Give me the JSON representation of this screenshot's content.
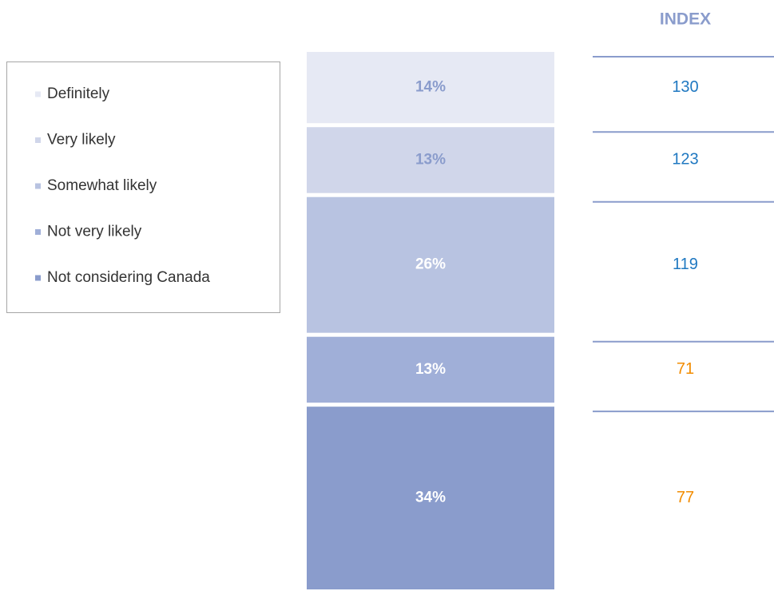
{
  "chart_data": {
    "type": "stacked_bar",
    "series": [
      {
        "name": "Definitely",
        "color": "#e6e9f4",
        "label_color": "#8a9ccc",
        "values": [
          14
        ],
        "value_labels": [
          "14%"
        ]
      },
      {
        "name": "Very likely",
        "color": "#d0d6ea",
        "label_color": "#8a9ccc",
        "values": [
          13
        ],
        "value_labels": [
          "13%"
        ]
      },
      {
        "name": "Somewhat likely",
        "color": "#b8c3e1",
        "label_color": "#ffffff",
        "values": [
          26
        ],
        "value_labels": [
          "26%"
        ]
      },
      {
        "name": "Not very likely",
        "color": "#a0afd8",
        "label_color": "#ffffff",
        "values": [
          13
        ],
        "value_labels": [
          "13%"
        ]
      },
      {
        "name": "Not considering Canada",
        "color": "#8a9ccc",
        "label_color": "#ffffff",
        "values": [
          34
        ],
        "value_labels": [
          "34%"
        ]
      }
    ],
    "ylim": [
      0,
      100
    ],
    "index_title": "INDEX",
    "index_values": [
      130,
      123,
      119,
      71,
      77
    ],
    "index_colors": [
      "#1f78c1",
      "#1f78c1",
      "#1f78c1",
      "#f28c00",
      "#f28c00"
    ]
  }
}
